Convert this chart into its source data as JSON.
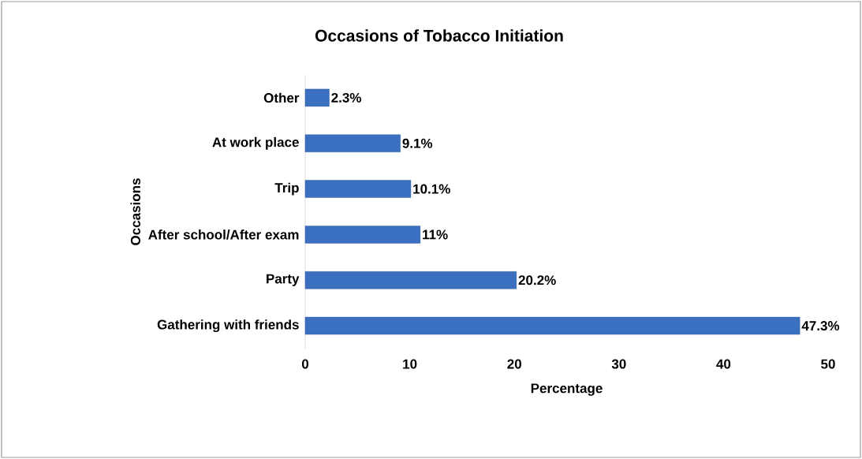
{
  "chart_data": {
    "type": "bar",
    "orientation": "horizontal",
    "title": "Occasions of Tobacco Initiation",
    "xlabel": "Percentage",
    "ylabel": "Occasions",
    "categories": [
      "Other",
      "At work place",
      "Trip",
      "After school/After exam",
      "Party",
      "Gathering with friends"
    ],
    "values": [
      2.3,
      9.1,
      10.1,
      11,
      20.2,
      47.3
    ],
    "value_labels": [
      "2.3%",
      "9.1%",
      "10.1%",
      "11%",
      "20.2%",
      "47.3%"
    ],
    "color": "#3b6fbf",
    "xlim": [
      0,
      50
    ],
    "xticks": [
      0,
      10,
      20,
      30,
      40,
      50
    ],
    "grid": false
  }
}
